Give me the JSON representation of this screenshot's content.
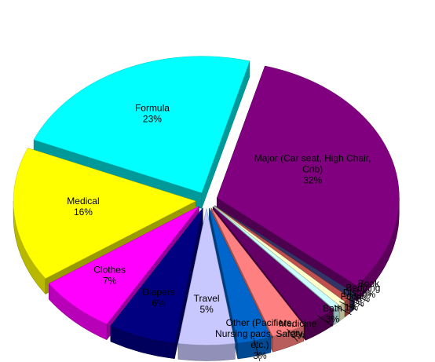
{
  "chart_data": {
    "type": "pie",
    "title": "",
    "style": "3d-exploded",
    "legend": "none",
    "data_label_format": "{name}\n{value}%",
    "slices": [
      {
        "name": "Travel",
        "label_lines": [
          "Travel"
        ],
        "value": 5,
        "color": "#C8C8FF"
      },
      {
        "name": "Diapers",
        "label_lines": [
          "Diapers"
        ],
        "value": 6,
        "color": "#000080"
      },
      {
        "name": "Clothes",
        "label_lines": [
          "Clothes"
        ],
        "value": 7,
        "color": "#FF00FF"
      },
      {
        "name": "Medical",
        "label_lines": [
          "Medical"
        ],
        "value": 16,
        "color": "#FFFF00"
      },
      {
        "name": "Formula",
        "label_lines": [
          "Formula"
        ],
        "value": 23,
        "color": "#00FFFF"
      },
      {
        "name": "Major (Car seat, High Chair, Crib)",
        "label_lines": [
          "Major (Car seat, High Chair,",
          "Crib)"
        ],
        "value": 32,
        "color": "#800080"
      },
      {
        "name": "Book",
        "label_lines": [
          "Book"
        ],
        "value": 0,
        "color": "#333366"
      },
      {
        "name": "Bedding",
        "label_lines": [
          "Bedding"
        ],
        "value": 0,
        "color": "#C0504D"
      },
      {
        "name": "Dishes",
        "label_lines": [
          "Dishes"
        ],
        "value": 1,
        "color": "#FFFFCC"
      },
      {
        "name": "Food",
        "label_lines": [
          "Food"
        ],
        "value": 1,
        "color": "#CCFFFF"
      },
      {
        "name": "Bath",
        "label_lines": [
          "Bath"
        ],
        "value": 3,
        "color": "#660066"
      },
      {
        "name": "Medicine",
        "label_lines": [
          "Medicine"
        ],
        "value": 3,
        "color": "#FF8080"
      },
      {
        "name": "Other (Pacifiers, Nursing pads, Safety, etc.)",
        "label_lines": [
          "Other (Pacifiers,",
          "Nursing pads, Safety,",
          "etc.)"
        ],
        "value": 3,
        "color": "#0066CC"
      }
    ]
  }
}
